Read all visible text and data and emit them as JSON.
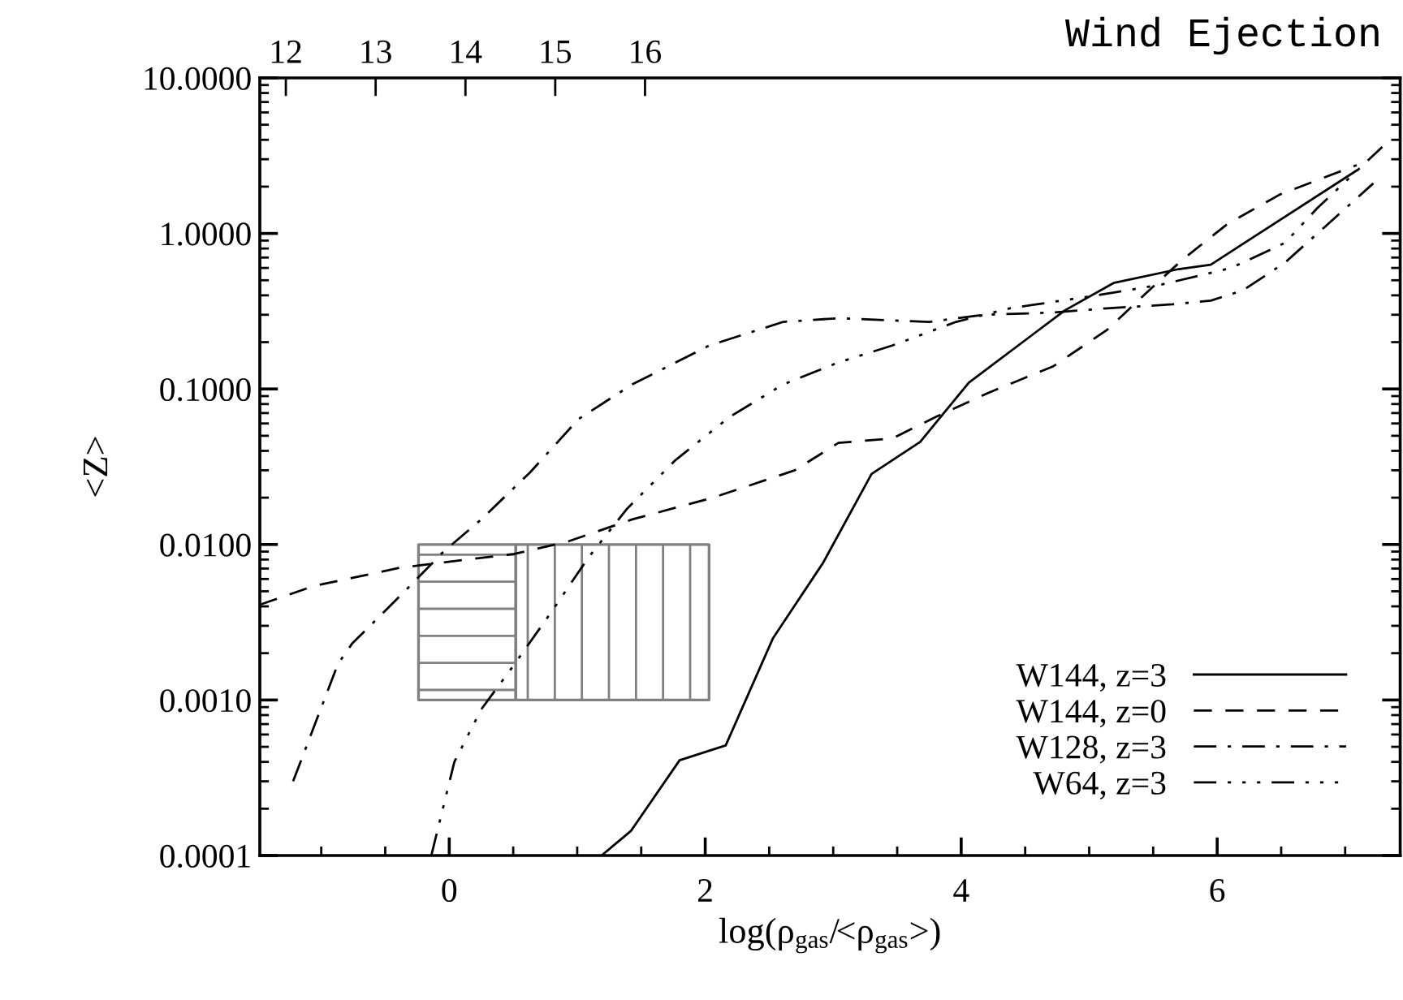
{
  "chart_data": {
    "type": "line",
    "title": "Wind Ejection",
    "xlabel": "log(ρ$_{gas}$/<ρ$_{gas}$>)",
    "ylabel": "<Z>",
    "log": "y",
    "xlim": [
      -1.48,
      7.43
    ],
    "xticks": [
      0,
      2,
      4,
      6
    ],
    "ylim": [
      0.0001,
      10
    ],
    "yticks": [
      {
        "value": 0.0001,
        "label": "0.0001"
      },
      {
        "value": 0.001,
        "label": "0.0010"
      },
      {
        "value": 0.01,
        "label": "0.0100"
      },
      {
        "value": 0.1,
        "label": "0.1000"
      },
      {
        "value": 1,
        "label": "1.0000"
      },
      {
        "value": 10,
        "label": "10.0000"
      }
    ],
    "x2lim": [
      11.71,
      24.41
    ],
    "x2ticks": [
      12,
      13,
      14,
      15,
      16
    ],
    "grid": false,
    "legend": "bottom right",
    "series": [
      {
        "color": "#808080",
        "x": [
          -0.24,
          0.52
        ],
        "values": [
          null,
          null
        ],
        "lower": [
          0.001,
          0.001
        ],
        "upper": [
          0.01,
          0.01
        ]
      },
      {
        "color": "#808080",
        "x": [
          0.52,
          2.03
        ],
        "values": [
          null,
          null
        ],
        "lower": [
          0.001,
          0.001
        ],
        "upper": [
          0.01,
          0.01
        ]
      },
      {
        "name": "W144, z=3",
        "color": "#000000",
        "line_style": "solid",
        "x": [
          1.19,
          1.42,
          1.8,
          2.16,
          2.53,
          2.92,
          3.3,
          3.68,
          4.06,
          4.81,
          5.19,
          5.7,
          5.95,
          7.09
        ],
        "values": [
          0.0001,
          0.000144,
          0.00041,
          0.00051,
          0.0025,
          0.0076,
          0.0284,
          0.0457,
          0.11,
          0.32,
          0.48,
          0.59,
          0.63,
          2.54
        ]
      },
      {
        "name": "W144, z=0",
        "color": "#000000",
        "line_style": "dashed",
        "x": [
          -1.48,
          -1.06,
          -0.38,
          0.51,
          0.92,
          1.43,
          2.06,
          2.7,
          3.04,
          3.46,
          3.8,
          4.22,
          4.72,
          5.14,
          5.48,
          5.73,
          6.08,
          6.49,
          7.09
        ],
        "values": [
          0.0041,
          0.0054,
          0.0071,
          0.0087,
          0.0104,
          0.0145,
          0.02,
          0.03,
          0.045,
          0.048,
          0.066,
          0.095,
          0.14,
          0.24,
          0.44,
          0.68,
          1.15,
          1.78,
          2.75
        ]
      },
      {
        "name": "W128, z=3",
        "color": "#000000",
        "line_style": "dashdot",
        "x": [
          -1.22,
          -0.87,
          -0.76,
          -0.38,
          -0.05,
          0.25,
          0.63,
          1.01,
          1.43,
          2.03,
          2.61,
          3.04,
          3.75,
          4.18,
          4.72,
          5.14,
          5.65,
          5.95,
          6.2,
          6.53,
          6.84,
          7.22
        ],
        "values": [
          0.0003,
          0.0017,
          0.0023,
          0.0047,
          0.0089,
          0.0145,
          0.029,
          0.064,
          0.107,
          0.19,
          0.27,
          0.285,
          0.27,
          0.3,
          0.31,
          0.33,
          0.35,
          0.37,
          0.43,
          0.65,
          1.1,
          2.1
        ]
      },
      {
        "name": "W64, z=3",
        "color": "#000000",
        "line_style": "dashdotdot",
        "x": [
          -0.14,
          0.04,
          0.25,
          0.51,
          0.8,
          1.09,
          1.39,
          1.77,
          2.19,
          2.61,
          3.04,
          3.46,
          3.96,
          4.38,
          5.06,
          5.57,
          6.11,
          6.53,
          6.78,
          7.29
        ],
        "values": [
          0.0001,
          0.0004,
          0.00087,
          0.0017,
          0.0037,
          0.0083,
          0.017,
          0.035,
          0.066,
          0.107,
          0.148,
          0.19,
          0.27,
          0.33,
          0.4,
          0.47,
          0.6,
          0.87,
          1.45,
          3.6
        ]
      }
    ]
  }
}
